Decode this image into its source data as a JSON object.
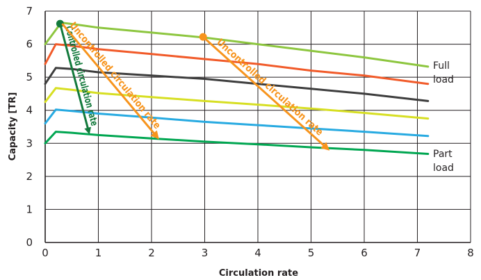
{
  "chart_data": {
    "type": "line",
    "title": "",
    "xlabel": "Circulation rate",
    "ylabel": "Capacity [TR]",
    "xlim": [
      0,
      8
    ],
    "ylim": [
      0,
      7
    ],
    "xticks": [
      0,
      1,
      2,
      3,
      4,
      5,
      6,
      7,
      8
    ],
    "yticks": [
      0,
      1,
      2,
      3,
      4,
      5,
      6,
      7
    ],
    "grid": true,
    "series": [
      {
        "color": "#8dc63f",
        "x": [
          0,
          0.3,
          0.55,
          1,
          2,
          3,
          4,
          5,
          6,
          7.2
        ],
        "y": [
          6.0,
          6.65,
          6.6,
          6.5,
          6.35,
          6.2,
          6.0,
          5.8,
          5.6,
          5.32
        ]
      },
      {
        "color": "#f15a29",
        "x": [
          0,
          0.2,
          0.5,
          1,
          2,
          3,
          4,
          5,
          6,
          7.2
        ],
        "y": [
          5.4,
          6.0,
          5.95,
          5.85,
          5.7,
          5.55,
          5.4,
          5.2,
          5.05,
          4.8
        ]
      },
      {
        "color": "#3d3d3d",
        "x": [
          0,
          0.2,
          0.5,
          1,
          2,
          3,
          4,
          5,
          6,
          7.2
        ],
        "y": [
          4.8,
          5.28,
          5.25,
          5.15,
          5.05,
          4.95,
          4.8,
          4.65,
          4.5,
          4.28
        ]
      },
      {
        "color": "#d7df23",
        "x": [
          0,
          0.2,
          0.5,
          1,
          2,
          3,
          4,
          5,
          6,
          7.2
        ],
        "y": [
          4.25,
          4.67,
          4.62,
          4.52,
          4.4,
          4.28,
          4.17,
          4.05,
          3.92,
          3.75
        ]
      },
      {
        "color": "#27aae1",
        "x": [
          0,
          0.2,
          0.5,
          1,
          2,
          3,
          4,
          5,
          6,
          7.2
        ],
        "y": [
          3.6,
          4.02,
          3.98,
          3.9,
          3.78,
          3.65,
          3.55,
          3.45,
          3.35,
          3.22
        ]
      },
      {
        "color": "#00a651",
        "x": [
          0,
          0.2,
          0.5,
          1,
          2,
          3,
          4,
          5,
          6,
          7.2
        ],
        "y": [
          3.0,
          3.35,
          3.32,
          3.25,
          3.15,
          3.05,
          2.97,
          2.88,
          2.8,
          2.68
        ]
      }
    ],
    "annotations": {
      "full_load": [
        "Full",
        "load"
      ],
      "part_load": [
        "Part",
        "load"
      ]
    },
    "arrows": [
      {
        "label": "Controlled circulation rate",
        "color": "#137a3c",
        "from": [
          0.28,
          6.62
        ],
        "to": [
          0.82,
          3.35
        ],
        "start_dot": true
      },
      {
        "label": "Uncontrolled circulation rate",
        "color": "#f7941d",
        "from": [
          0.32,
          6.62
        ],
        "to": [
          2.1,
          3.2
        ],
        "start_dot": false
      },
      {
        "label": "Uncontrolled circulation rate",
        "color": "#f7941d",
        "from": [
          2.97,
          6.22
        ],
        "to": [
          5.3,
          2.85
        ],
        "start_dot": true
      }
    ]
  }
}
